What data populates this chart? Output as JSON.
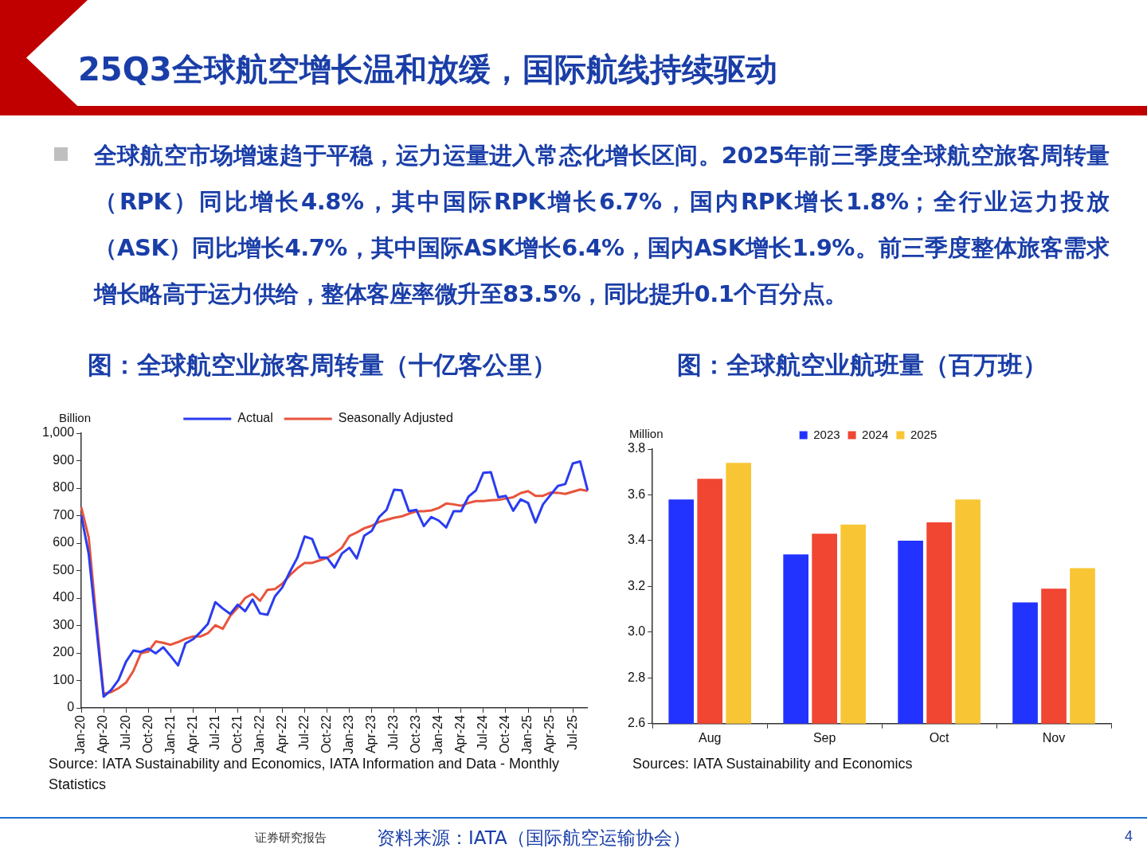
{
  "chart_data": [
    {
      "type": "line",
      "title": "图：全球航空业旅客周转量（十亿客公里）",
      "ylabel": "Billion",
      "annotations": [
        "25Q3全球航空增长温和放缓，国际航线持续驱动",
        "全球航空市场增速趋于平稳，运力运量进入常态化增长区间。2025年前三季度全球航空旅客周转量（RPK）同比增长4.8%，其中国际RPK增长6.7%，国内RPK增长1.8%；全行业运力投放（ASK）同比增长4.7%，其中国际ASK增长6.4%，国内ASK增长1.9%。前三季度整体旅客需求增长略高于运力供给，整体客座率微升至83.5%，同比提升0.1个百分点。",
        "Source: IATA Sustainability and Economics, IATA Information and Data - Monthly Statistics"
      ],
      "categories": [
        "Jan-20",
        null,
        null,
        "Apr-20",
        null,
        null,
        "Jul-20",
        null,
        null,
        "Oct-20",
        null,
        null,
        "Jan-21",
        null,
        null,
        "Apr-21",
        null,
        null,
        "Jul-21",
        null,
        null,
        "Oct-21",
        null,
        null,
        "Jan-22",
        null,
        null,
        "Apr-22",
        null,
        null,
        "Jul-22",
        null,
        null,
        "Oct-22",
        null,
        null,
        "Jan-23",
        null,
        null,
        "Apr-23",
        null,
        null,
        "Jul-23",
        null,
        null,
        "Oct-23",
        null,
        null,
        "Jan-24",
        null,
        null,
        "Apr-24",
        null,
        null,
        "Jul-24",
        null,
        null,
        "Oct-24",
        null,
        null,
        "Jan-25",
        null,
        null,
        "Apr-25",
        null,
        null,
        "Jul-25",
        null,
        null
      ],
      "series": [
        {
          "name": "Actual",
          "color": "#2a3cf0",
          "values": [
            700,
            560,
            300,
            41,
            65,
            102,
            168,
            209,
            204,
            216,
            199,
            221,
            189,
            155,
            235,
            250,
            276,
            306,
            385,
            362,
            342,
            376,
            352,
            395,
            344,
            339,
            406,
            439,
            495,
            546,
            624,
            615,
            547,
            547,
            511,
            562,
            583,
            544,
            627,
            644,
            695,
            721,
            794,
            792,
            716,
            721,
            662,
            695,
            682,
            657,
            716,
            716,
            769,
            792,
            856,
            858,
            767,
            772,
            718,
            759,
            746,
            675,
            741,
            775,
            808,
            815,
            890,
            897,
            792
          ]
        },
        {
          "name": "Seasonally Adjusted",
          "color": "#e8543c",
          "values": [
            730,
            620,
            330,
            51,
            58,
            72,
            92,
            135,
            199,
            205,
            242,
            237,
            230,
            240,
            252,
            260,
            260,
            272,
            301,
            288,
            335,
            365,
            400,
            415,
            390,
            430,
            433,
            452,
            483,
            508,
            528,
            528,
            537,
            546,
            562,
            583,
            626,
            639,
            654,
            663,
            677,
            685,
            692,
            697,
            707,
            716,
            716,
            719,
            728,
            744,
            741,
            736,
            746,
            753,
            753,
            756,
            757,
            762,
            767,
            782,
            789,
            772,
            772,
            784,
            783,
            779,
            787,
            795,
            790
          ]
        }
      ],
      "ylim": [
        0,
        1000
      ],
      "yticks": [
        0,
        100,
        200,
        300,
        400,
        500,
        600,
        700,
        800,
        900,
        {
          "value": 1000,
          "label": "1,000"
        }
      ],
      "legend": "top",
      "marker": "none"
    },
    {
      "type": "bar",
      "title": "图：全球航空业航班量（百万班）",
      "ylabel": "Million",
      "annotations": [
        "Sources: IATA Sustainability and Economics",
        "证券研究报告",
        "资料来源：IATA（国际航空运输协会）",
        "4"
      ],
      "categories": [
        "Aug",
        "Sep",
        "Oct",
        "Nov"
      ],
      "series": [
        {
          "name": "2023",
          "color": "#2233ff",
          "values": [
            3.58,
            3.34,
            3.4,
            3.13
          ]
        },
        {
          "name": "2024",
          "color": "#f04632",
          "values": [
            3.67,
            3.43,
            3.48,
            3.19
          ]
        },
        {
          "name": "2025",
          "color": "#f8c634",
          "values": [
            3.74,
            3.47,
            3.58,
            3.28
          ]
        }
      ],
      "ylim": [
        2.6,
        3.8
      ],
      "yticks": [
        2.6,
        2.8,
        {
          "value": 3,
          "label": "3.0"
        },
        3.2,
        3.4,
        3.6,
        3.8
      ],
      "legend": "top"
    }
  ]
}
